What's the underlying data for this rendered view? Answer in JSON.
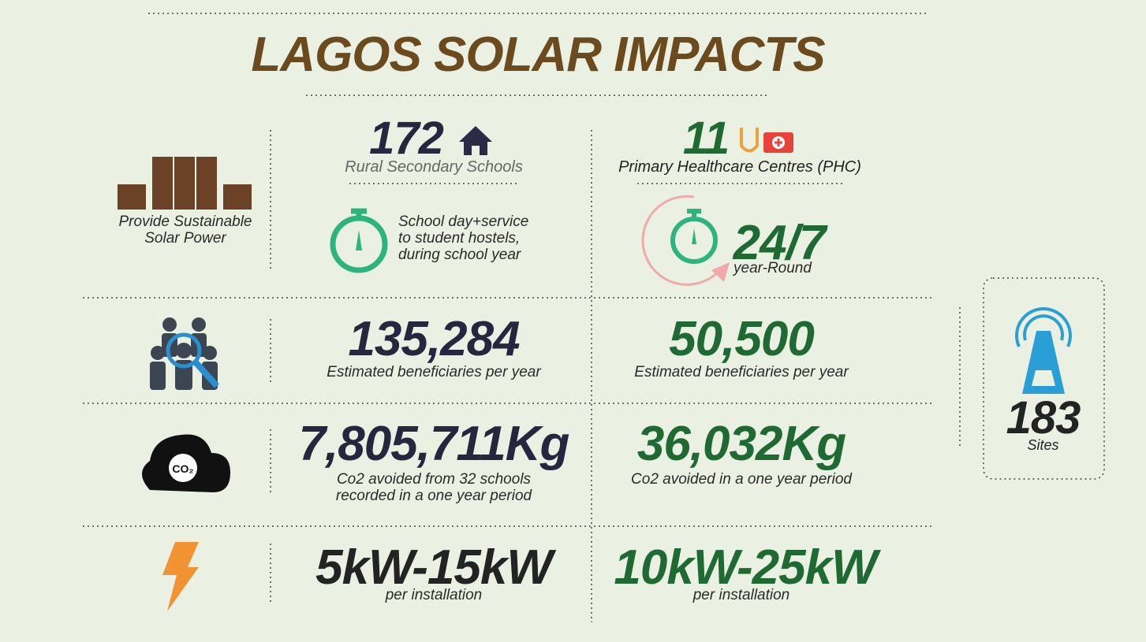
{
  "title": "LAGOS SOLAR IMPACTS",
  "intro": {
    "label": "Provide Sustainable\nSolar Power"
  },
  "schools": {
    "count": "172",
    "label": "Rural Secondary Schools",
    "service": "School day+service\nto student hostels,\nduring school year",
    "beneficiaries": "135,284",
    "beneficiaries_label": "Estimated beneficiaries per year",
    "co2": "7,805,711Kg",
    "co2_label": "Co2 avoided from 32 schools\nrecorded in a one year period",
    "capacity": "5kW-15kW",
    "capacity_label": "per installation"
  },
  "phc": {
    "count": "11",
    "label": "Primary Healthcare Centres (PHC)",
    "service": "24/7",
    "service_label": "year-Round",
    "beneficiaries": "50,500",
    "beneficiaries_label": "Estimated beneficiaries per year",
    "co2": "36,032Kg",
    "co2_label": "Co2 avoided in a one year period",
    "capacity": "10kW-25kW",
    "capacity_label": "per installation"
  },
  "sites": {
    "count": "183",
    "label": "Sites"
  }
}
